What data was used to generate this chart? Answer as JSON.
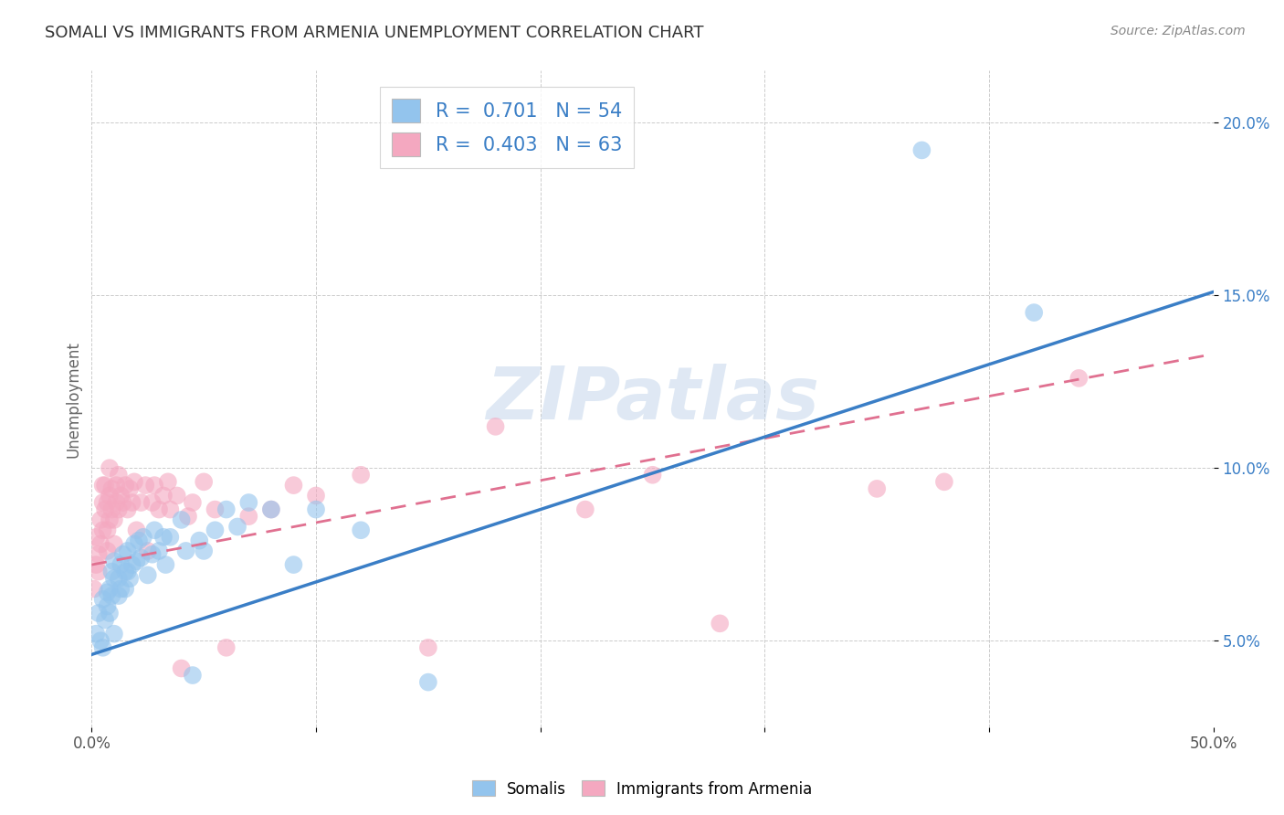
{
  "title": "SOMALI VS IMMIGRANTS FROM ARMENIA UNEMPLOYMENT CORRELATION CHART",
  "source": "Source: ZipAtlas.com",
  "ylabel": "Unemployment",
  "x_min": 0.0,
  "x_max": 0.5,
  "y_min": 0.025,
  "y_max": 0.215,
  "x_ticks": [
    0.0,
    0.1,
    0.2,
    0.3,
    0.4,
    0.5
  ],
  "x_tick_labels": [
    "0.0%",
    "",
    "",
    "",
    "",
    "50.0%"
  ],
  "y_ticks": [
    0.05,
    0.1,
    0.15,
    0.2
  ],
  "y_tick_labels": [
    "5.0%",
    "10.0%",
    "15.0%",
    "20.0%"
  ],
  "somali_color": "#93C4ED",
  "armenia_color": "#F4A8C0",
  "somali_line_color": "#3A7EC6",
  "armenia_line_color": "#E07090",
  "somali_R": 0.701,
  "somali_N": 54,
  "armenia_R": 0.403,
  "armenia_N": 63,
  "watermark": "ZIPatlas",
  "legend_entries": [
    "Somalis",
    "Immigrants from Armenia"
  ],
  "somali_line_y0": 0.046,
  "somali_line_y1": 0.151,
  "armenia_line_y0": 0.072,
  "armenia_line_y1": 0.133,
  "somali_scatter_x": [
    0.002,
    0.003,
    0.004,
    0.005,
    0.005,
    0.006,
    0.007,
    0.007,
    0.008,
    0.008,
    0.009,
    0.009,
    0.01,
    0.01,
    0.01,
    0.012,
    0.012,
    0.013,
    0.013,
    0.014,
    0.015,
    0.015,
    0.016,
    0.016,
    0.017,
    0.018,
    0.019,
    0.02,
    0.021,
    0.022,
    0.023,
    0.025,
    0.027,
    0.028,
    0.03,
    0.032,
    0.033,
    0.035,
    0.04,
    0.042,
    0.045,
    0.048,
    0.05,
    0.055,
    0.06,
    0.065,
    0.07,
    0.08,
    0.09,
    0.1,
    0.12,
    0.15,
    0.37,
    0.42
  ],
  "somali_scatter_y": [
    0.052,
    0.058,
    0.05,
    0.048,
    0.062,
    0.056,
    0.064,
    0.06,
    0.065,
    0.058,
    0.07,
    0.063,
    0.052,
    0.068,
    0.073,
    0.063,
    0.068,
    0.072,
    0.065,
    0.075,
    0.07,
    0.065,
    0.07,
    0.076,
    0.068,
    0.072,
    0.078,
    0.073,
    0.079,
    0.074,
    0.08,
    0.069,
    0.075,
    0.082,
    0.076,
    0.08,
    0.072,
    0.08,
    0.085,
    0.076,
    0.04,
    0.079,
    0.076,
    0.082,
    0.088,
    0.083,
    0.09,
    0.088,
    0.072,
    0.088,
    0.082,
    0.038,
    0.192,
    0.145
  ],
  "armenia_scatter_x": [
    0.001,
    0.002,
    0.002,
    0.003,
    0.003,
    0.004,
    0.004,
    0.005,
    0.005,
    0.005,
    0.006,
    0.006,
    0.007,
    0.007,
    0.007,
    0.008,
    0.008,
    0.008,
    0.009,
    0.009,
    0.01,
    0.01,
    0.011,
    0.011,
    0.012,
    0.012,
    0.013,
    0.014,
    0.015,
    0.016,
    0.017,
    0.018,
    0.019,
    0.02,
    0.022,
    0.024,
    0.025,
    0.027,
    0.028,
    0.03,
    0.032,
    0.034,
    0.035,
    0.038,
    0.04,
    0.043,
    0.045,
    0.05,
    0.055,
    0.06,
    0.07,
    0.08,
    0.09,
    0.1,
    0.12,
    0.15,
    0.18,
    0.22,
    0.25,
    0.28,
    0.35,
    0.38,
    0.44
  ],
  "armenia_scatter_y": [
    0.065,
    0.072,
    0.08,
    0.07,
    0.075,
    0.078,
    0.085,
    0.082,
    0.09,
    0.095,
    0.088,
    0.095,
    0.076,
    0.082,
    0.09,
    0.085,
    0.092,
    0.1,
    0.088,
    0.094,
    0.085,
    0.078,
    0.09,
    0.095,
    0.088,
    0.098,
    0.092,
    0.09,
    0.095,
    0.088,
    0.094,
    0.09,
    0.096,
    0.082,
    0.09,
    0.095,
    0.076,
    0.09,
    0.095,
    0.088,
    0.092,
    0.096,
    0.088,
    0.092,
    0.042,
    0.086,
    0.09,
    0.096,
    0.088,
    0.048,
    0.086,
    0.088,
    0.095,
    0.092,
    0.098,
    0.048,
    0.112,
    0.088,
    0.098,
    0.055,
    0.094,
    0.096,
    0.126
  ]
}
